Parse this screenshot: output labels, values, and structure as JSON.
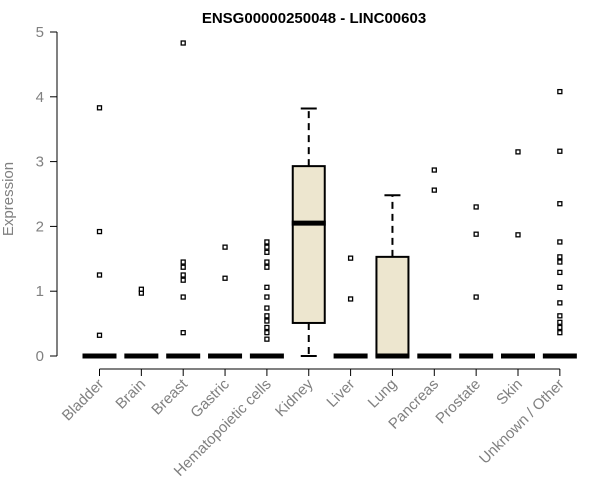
{
  "chart_data": {
    "type": "box",
    "title": "ENSG00000250048 - LINC00603",
    "xlabel": "",
    "ylabel": "Expression",
    "ylim": [
      0,
      5
    ],
    "yticks": [
      "0",
      "1",
      "2",
      "3",
      "4",
      "5"
    ],
    "grid": false,
    "colors": {
      "box_fill": "#ede6cf",
      "stroke": "#000000",
      "axis_text": "#808080",
      "title": "#000000"
    },
    "categories": [
      "Bladder",
      "Brain",
      "Breast",
      "Gastric",
      "Hematopoietic cells",
      "Kidney",
      "Liver",
      "Lung",
      "Pancreas",
      "Prostate",
      "Skin",
      "Unknown / Other"
    ],
    "boxes": [
      {
        "category": "Bladder",
        "q1": 0,
        "median": 0,
        "q3": 0,
        "whisker_low": 0,
        "whisker_high": 0,
        "outliers": [
          0.32,
          1.25,
          1.92,
          3.83
        ]
      },
      {
        "category": "Brain",
        "q1": 0,
        "median": 0,
        "q3": 0,
        "whisker_low": 0,
        "whisker_high": 0,
        "outliers": [
          0.97,
          1.03
        ]
      },
      {
        "category": "Breast",
        "q1": 0,
        "median": 0,
        "q3": 0,
        "whisker_low": 0,
        "whisker_high": 0,
        "outliers": [
          0.36,
          0.91,
          1.17,
          1.25,
          1.37,
          1.45,
          4.83
        ]
      },
      {
        "category": "Gastric",
        "q1": 0,
        "median": 0,
        "q3": 0,
        "whisker_low": 0,
        "whisker_high": 0,
        "outliers": [
          1.2,
          1.68
        ]
      },
      {
        "category": "Hematopoietic cells",
        "q1": 0,
        "median": 0,
        "q3": 0,
        "whisker_low": 0,
        "whisker_high": 0,
        "outliers": [
          0.26,
          0.36,
          0.44,
          0.54,
          0.62,
          0.74,
          0.91,
          1.06,
          1.37,
          1.45,
          1.6,
          1.68,
          1.76
        ]
      },
      {
        "category": "Kidney",
        "q1": 0.51,
        "median": 2.05,
        "q3": 2.93,
        "whisker_low": 0,
        "whisker_high": 3.82,
        "outliers": []
      },
      {
        "category": "Liver",
        "q1": 0,
        "median": 0,
        "q3": 0,
        "whisker_low": 0,
        "whisker_high": 0,
        "outliers": [
          0.88,
          1.51
        ]
      },
      {
        "category": "Lung",
        "q1": 0,
        "median": 0,
        "q3": 1.53,
        "whisker_low": 0,
        "whisker_high": 2.48,
        "outliers": []
      },
      {
        "category": "Pancreas",
        "q1": 0,
        "median": 0,
        "q3": 0,
        "whisker_low": 0,
        "whisker_high": 0,
        "outliers": [
          2.56,
          2.87
        ]
      },
      {
        "category": "Prostate",
        "q1": 0,
        "median": 0,
        "q3": 0,
        "whisker_low": 0,
        "whisker_high": 0,
        "outliers": [
          0.91,
          1.88,
          2.3
        ]
      },
      {
        "category": "Skin",
        "q1": 0,
        "median": 0,
        "q3": 0,
        "whisker_low": 0,
        "whisker_high": 0,
        "outliers": [
          1.87,
          3.15
        ]
      },
      {
        "category": "Unknown / Other",
        "q1": 0,
        "median": 0,
        "q3": 0,
        "whisker_low": 0,
        "whisker_high": 0,
        "outliers": [
          0.36,
          0.44,
          0.52,
          0.62,
          0.82,
          1.06,
          1.29,
          1.45,
          1.53,
          1.76,
          2.35,
          3.16,
          4.08
        ]
      }
    ]
  }
}
